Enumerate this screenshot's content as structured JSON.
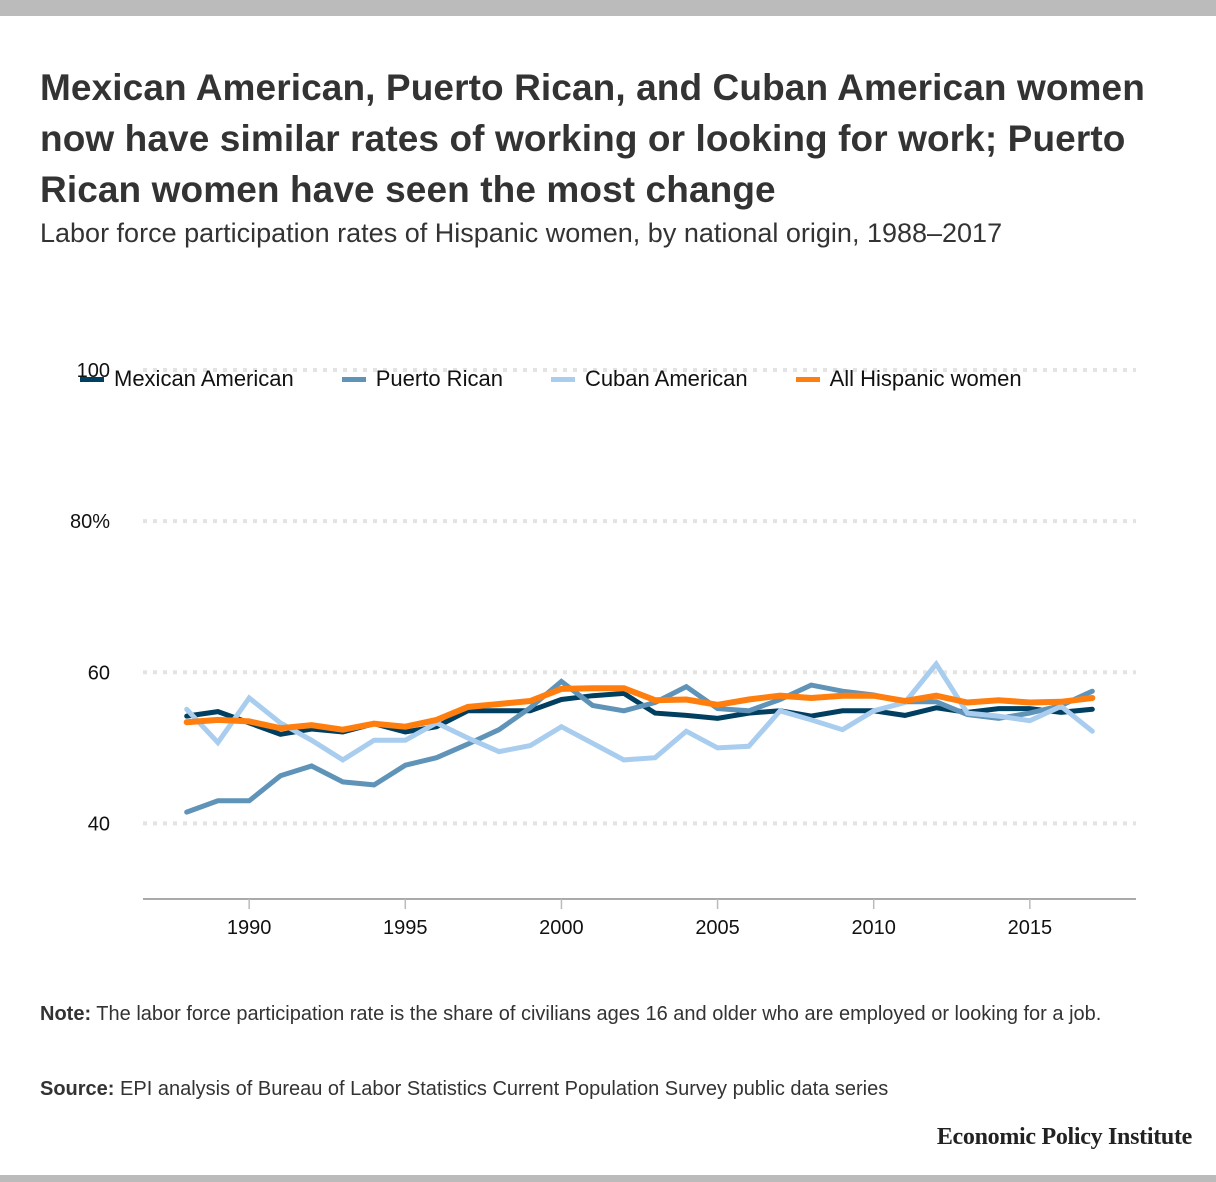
{
  "header": {
    "title": "Mexican American, Puerto Rican, and Cuban American women now have similar rates of working or looking for work; Puerto Rican women have seen the most change",
    "subtitle": "Labor force participation rates of Hispanic women, by national origin, 1988–2017"
  },
  "footer": {
    "note_label": "Note:",
    "note_text": " The labor force participation rate is the share of civilians ages 16 and older who are employed or looking for a job.",
    "source_label": "Source:",
    "source_text": " EPI analysis of Bureau of Labor Statistics Current Population Survey public data series",
    "brand": "Economic Policy Institute"
  },
  "chart_data": {
    "type": "line",
    "title": "Mexican American, Puerto Rican, and Cuban American women now have similar rates of working or looking for work; Puerto Rican women have seen the most change",
    "subtitle": "Labor force participation rates of Hispanic women, by national origin, 1988–2017",
    "xlabel": "",
    "ylabel": "",
    "x": [
      1988,
      1989,
      1990,
      1991,
      1992,
      1993,
      1994,
      1995,
      1996,
      1997,
      1998,
      1999,
      2000,
      2001,
      2002,
      2003,
      2004,
      2005,
      2006,
      2007,
      2008,
      2009,
      2010,
      2011,
      2012,
      2013,
      2014,
      2015,
      2016,
      2017
    ],
    "xlim": [
      1986.6,
      2018.4
    ],
    "ylim": [
      30,
      100
    ],
    "x_ticks": [
      1990,
      1995,
      2000,
      2005,
      2010,
      2015
    ],
    "x_tick_labels": [
      "1990",
      "1995",
      "2000",
      "2005",
      "2010",
      "2015"
    ],
    "y_ticks": [
      40,
      60,
      80,
      100
    ],
    "y_tick_labels": [
      "40",
      "60",
      "80%",
      "100"
    ],
    "grid": true,
    "legend_position": "top",
    "series": [
      {
        "name": "Mexican American",
        "color": "#003f5f",
        "values": [
          54.2,
          54.8,
          53.3,
          51.8,
          52.5,
          52.1,
          53.2,
          52.1,
          52.8,
          54.9,
          54.9,
          54.9,
          56.4,
          56.9,
          57.2,
          54.6,
          54.3,
          53.9,
          54.6,
          54.9,
          54.2,
          54.9,
          54.9,
          54.3,
          55.3,
          54.7,
          55.2,
          55.2,
          54.7,
          55.1
        ]
      },
      {
        "name": "Puerto Rican",
        "color": "#5f93b8",
        "values": [
          41.5,
          43.0,
          43.0,
          46.3,
          47.6,
          45.5,
          45.1,
          47.7,
          48.7,
          50.5,
          52.4,
          55.3,
          58.8,
          55.6,
          54.9,
          56.0,
          58.1,
          55.2,
          54.9,
          56.4,
          58.3,
          57.5,
          57.0,
          56.1,
          56.1,
          54.4,
          53.9,
          54.6,
          55.6,
          57.5
        ]
      },
      {
        "name": "Cuban American",
        "color": "#a8cdee",
        "values": [
          55.1,
          50.7,
          56.6,
          53.3,
          51.0,
          48.4,
          51.0,
          51.0,
          53.3,
          51.3,
          49.5,
          50.3,
          52.8,
          50.6,
          48.4,
          48.7,
          52.2,
          50.0,
          50.2,
          54.9,
          53.7,
          52.4,
          54.9,
          56.0,
          61.1,
          54.6,
          54.2,
          53.6,
          55.5,
          52.2
        ]
      },
      {
        "name": "All Hispanic women",
        "color": "#ff7e0d",
        "values": [
          53.4,
          53.7,
          53.5,
          52.6,
          53.0,
          52.4,
          53.2,
          52.8,
          53.7,
          55.4,
          55.8,
          56.2,
          57.8,
          57.9,
          57.9,
          56.3,
          56.4,
          55.7,
          56.4,
          56.9,
          56.6,
          56.9,
          56.9,
          56.2,
          56.9,
          56.0,
          56.3,
          56.0,
          56.1,
          56.6
        ]
      }
    ]
  }
}
